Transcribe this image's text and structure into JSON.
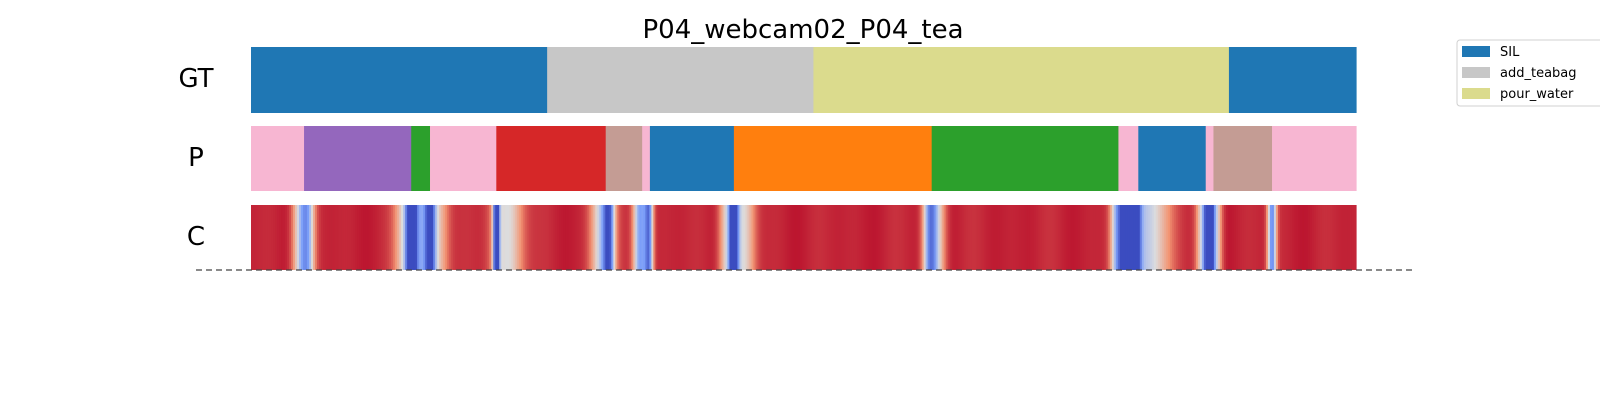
{
  "chart_data": {
    "type": "segmentation_timeline",
    "title": "P04_webcam02_P04_tea",
    "row_labels": [
      "GT",
      "P",
      "C"
    ],
    "x_range": [
      0,
      1
    ],
    "rows": {
      "GT": [
        {
          "start": 0.0,
          "end": 0.268,
          "label": "SIL"
        },
        {
          "start": 0.268,
          "end": 0.509,
          "label": "add_teabag"
        },
        {
          "start": 0.509,
          "end": 0.885,
          "label": "pour_water"
        },
        {
          "start": 0.885,
          "end": 1.0,
          "label": "SIL"
        }
      ],
      "P": [
        {
          "start": 0.0,
          "end": 0.048,
          "color": "#f7b6d2"
        },
        {
          "start": 0.048,
          "end": 0.145,
          "color": "#9467bd"
        },
        {
          "start": 0.145,
          "end": 0.162,
          "color": "#2ca02c"
        },
        {
          "start": 0.162,
          "end": 0.222,
          "color": "#f7b6d2"
        },
        {
          "start": 0.222,
          "end": 0.321,
          "color": "#d62728"
        },
        {
          "start": 0.321,
          "end": 0.354,
          "color": "#c49c94"
        },
        {
          "start": 0.354,
          "end": 0.361,
          "color": "#f7b6d2"
        },
        {
          "start": 0.361,
          "end": 0.437,
          "color": "#1f77b4"
        },
        {
          "start": 0.437,
          "end": 0.616,
          "color": "#ff7f0e"
        },
        {
          "start": 0.616,
          "end": 0.785,
          "color": "#2ca02c"
        },
        {
          "start": 0.785,
          "end": 0.803,
          "color": "#f7b6d2"
        },
        {
          "start": 0.803,
          "end": 0.864,
          "color": "#1f77b4"
        },
        {
          "start": 0.864,
          "end": 0.871,
          "color": "#f7b6d2"
        },
        {
          "start": 0.871,
          "end": 0.924,
          "color": "#c49c94"
        },
        {
          "start": 0.924,
          "end": 1.0,
          "color": "#f7b6d2"
        }
      ],
      "C": {
        "colormap": "coolwarm",
        "baseline": 0.97,
        "dips": [
          {
            "pos": 0.046,
            "depth": 0.55,
            "width": 0.008
          },
          {
            "pos": 0.052,
            "depth": 0.35,
            "width": 0.006
          },
          {
            "pos": 0.14,
            "depth": 0.4,
            "width": 0.01
          },
          {
            "pos": 0.145,
            "depth": 0.8,
            "width": 0.004
          },
          {
            "pos": 0.151,
            "depth": 0.55,
            "width": 0.01
          },
          {
            "pos": 0.162,
            "depth": 0.7,
            "width": 0.005
          },
          {
            "pos": 0.169,
            "depth": 0.35,
            "width": 0.01
          },
          {
            "pos": 0.222,
            "depth": 0.9,
            "width": 0.003
          },
          {
            "pos": 0.232,
            "depth": 0.45,
            "width": 0.014
          },
          {
            "pos": 0.318,
            "depth": 0.55,
            "width": 0.01
          },
          {
            "pos": 0.324,
            "depth": 0.6,
            "width": 0.005
          },
          {
            "pos": 0.352,
            "depth": 0.7,
            "width": 0.006
          },
          {
            "pos": 0.36,
            "depth": 0.75,
            "width": 0.004
          },
          {
            "pos": 0.432,
            "depth": 0.45,
            "width": 0.008
          },
          {
            "pos": 0.437,
            "depth": 0.8,
            "width": 0.004
          },
          {
            "pos": 0.446,
            "depth": 0.4,
            "width": 0.01
          },
          {
            "pos": 0.614,
            "depth": 0.55,
            "width": 0.006
          },
          {
            "pos": 0.62,
            "depth": 0.45,
            "width": 0.008
          },
          {
            "pos": 0.784,
            "depth": 0.55,
            "width": 0.006
          },
          {
            "pos": 0.791,
            "depth": 0.7,
            "width": 0.005
          },
          {
            "pos": 0.8,
            "depth": 0.85,
            "width": 0.005
          },
          {
            "pos": 0.81,
            "depth": 0.55,
            "width": 0.02
          },
          {
            "pos": 0.862,
            "depth": 0.5,
            "width": 0.006
          },
          {
            "pos": 0.867,
            "depth": 0.8,
            "width": 0.004
          },
          {
            "pos": 0.872,
            "depth": 0.55,
            "width": 0.006
          },
          {
            "pos": 0.924,
            "depth": 0.75,
            "width": 0.004
          }
        ]
      }
    },
    "legend": {
      "position": "upper-right",
      "entries": [
        {
          "label": "SIL",
          "color": "#1f77b4"
        },
        {
          "label": "add_teabag",
          "color": "#c7c7c7"
        },
        {
          "label": "pour_water",
          "color": "#dbdb8d"
        }
      ]
    },
    "grid": false,
    "baseline_line": "dashed"
  }
}
